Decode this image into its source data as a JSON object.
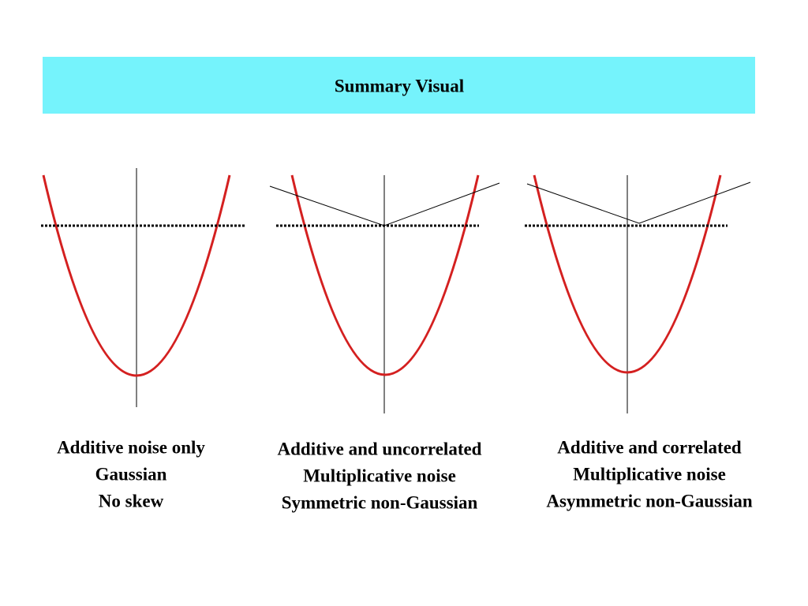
{
  "title": "Summary Visual",
  "panels": [
    {
      "caption": [
        "Additive noise only",
        "Gaussian",
        "No skew"
      ]
    },
    {
      "caption": [
        "Additive and uncorrelated",
        "Multiplicative noise",
        "Symmetric non-Gaussian"
      ]
    },
    {
      "caption": [
        "Additive and correlated",
        "Multiplicative noise",
        "Asymmetric non-Gaussian"
      ]
    }
  ]
}
